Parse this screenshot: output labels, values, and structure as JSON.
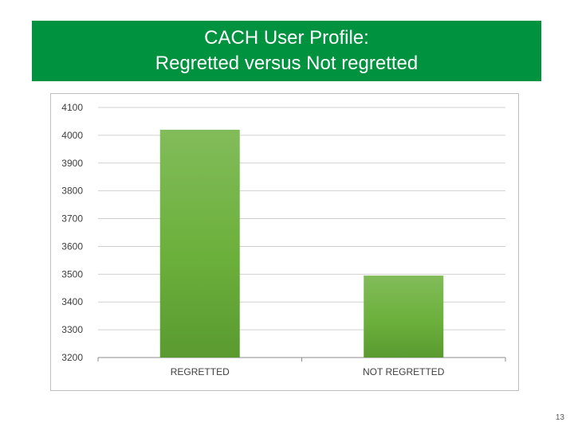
{
  "slide": {
    "title_line1": "CACH User Profile:",
    "title_line2": "Regretted versus Not regretted",
    "page_number": "13",
    "banner_color": "#00923f"
  },
  "chart_data": {
    "type": "bar",
    "title": "",
    "xlabel": "",
    "ylabel": "",
    "categories": [
      "REGRETTED",
      "NOT REGRETTED"
    ],
    "values": [
      4020,
      3495
    ],
    "ylim": [
      3200,
      4100
    ],
    "yticks": [
      3200,
      3300,
      3400,
      3500,
      3600,
      3700,
      3800,
      3900,
      4000,
      4100
    ],
    "grid": true,
    "legend": "none",
    "bar_color": "#6aaf3d"
  }
}
